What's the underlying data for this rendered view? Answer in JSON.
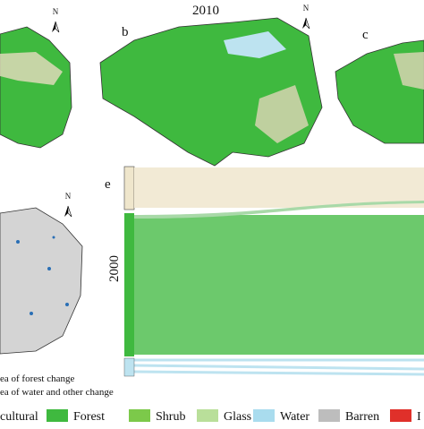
{
  "header": {
    "year": "2010"
  },
  "panels": [
    {
      "label": "b"
    },
    {
      "label": "c"
    },
    {
      "label": "e"
    }
  ],
  "north_arrows": [
    "N",
    "N",
    "N"
  ],
  "sankey": {
    "axis_label": "2000"
  },
  "notes": [
    "ea of forest change",
    "ea of water and other change"
  ],
  "legend": [
    "cultural",
    "Forest",
    "Shrub",
    "Glass",
    "Water",
    "Barren",
    "I"
  ]
}
